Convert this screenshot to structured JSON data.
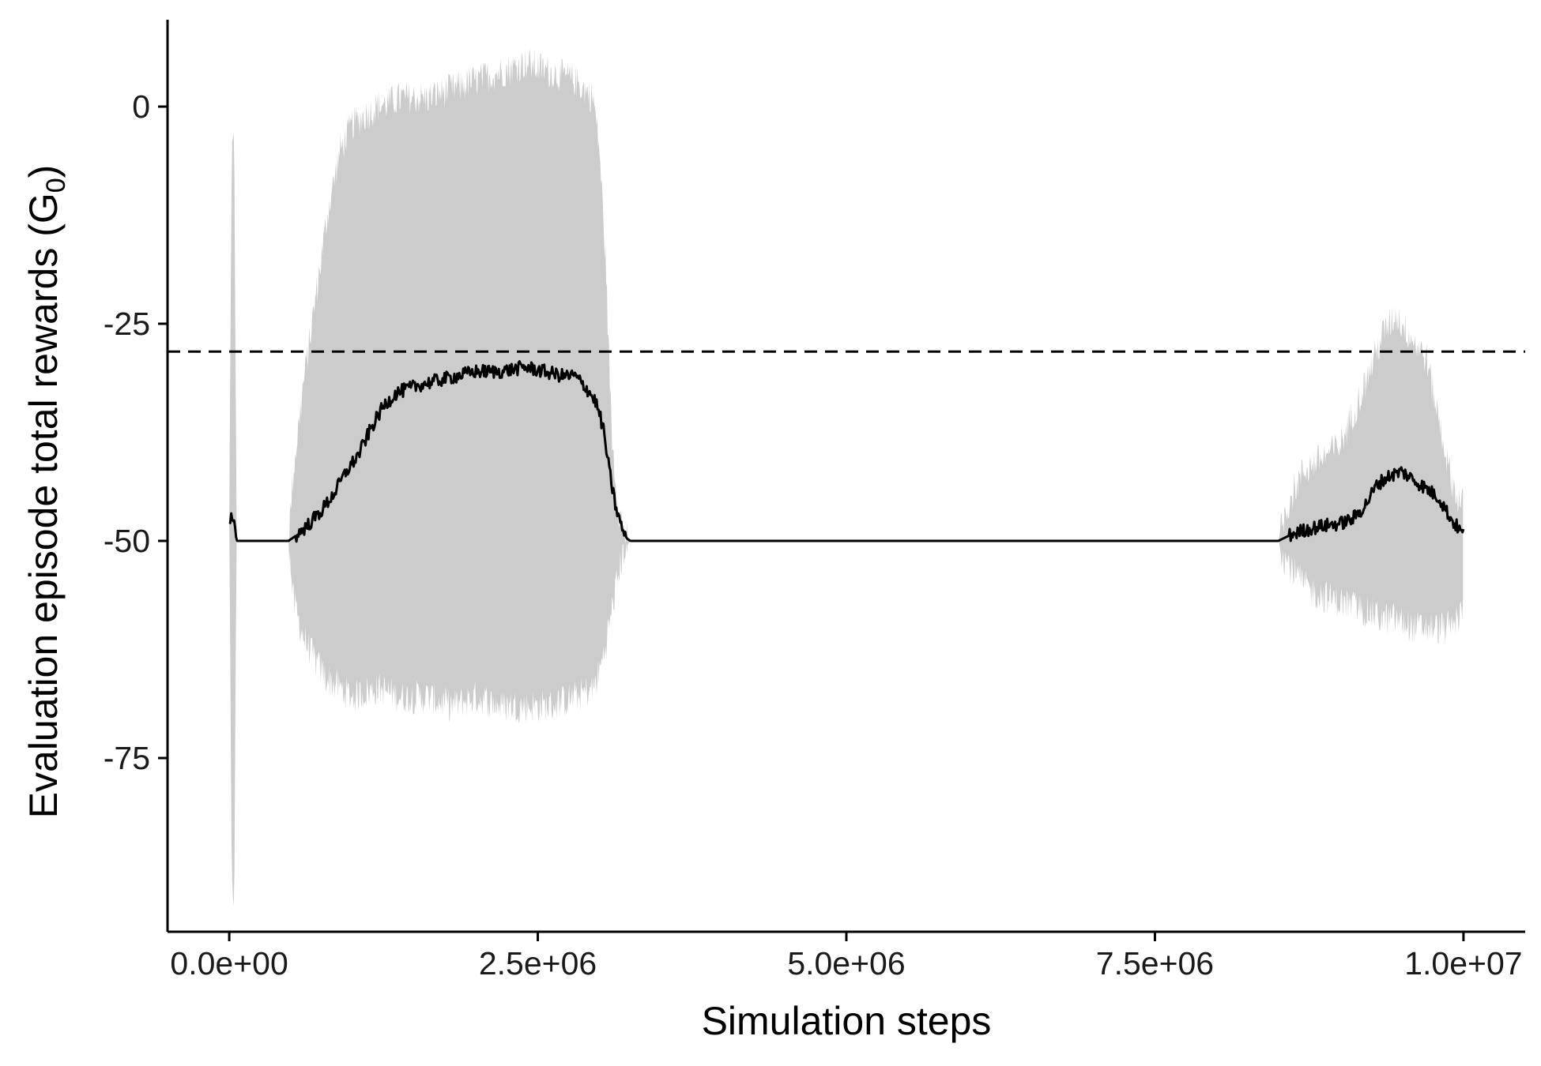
{
  "chart_data": {
    "type": "line",
    "xlabel": "Simulation steps",
    "ylabel": "Evaluation episode total rewards (G",
    "ylabel_subscript": "0",
    "ylabel_suffix": ")",
    "xlim": [
      -500000,
      10500000
    ],
    "ylim": [
      -95,
      10
    ],
    "x_ticks": [
      {
        "value": 0,
        "label": "0.0e+00"
      },
      {
        "value": 2500000,
        "label": "2.5e+06"
      },
      {
        "value": 5000000,
        "label": "5.0e+06"
      },
      {
        "value": 7500000,
        "label": "7.5e+06"
      },
      {
        "value": 10000000,
        "label": "1.0e+07"
      }
    ],
    "y_ticks": [
      {
        "value": 0,
        "label": "0"
      },
      {
        "value": -25,
        "label": "-25"
      },
      {
        "value": -50,
        "label": "-50"
      },
      {
        "value": -75,
        "label": "-75"
      }
    ],
    "reference_line": {
      "y": -28.2,
      "style": "dashed",
      "color": "#000000"
    },
    "band_color": "#cccccc",
    "line_color": "#000000",
    "band": [
      [
        0,
        -48,
        -48
      ],
      [
        20000,
        -90,
        -5
      ],
      [
        40000,
        -91,
        -4
      ],
      [
        60000,
        -50,
        -50
      ],
      [
        480000,
        -50,
        -50
      ],
      [
        520000,
        -57,
        -42
      ],
      [
        600000,
        -61,
        -32
      ],
      [
        700000,
        -64,
        -22
      ],
      [
        800000,
        -66,
        -12
      ],
      [
        900000,
        -67,
        -5
      ],
      [
        1000000,
        -68,
        -2
      ],
      [
        1200000,
        -67,
        0
      ],
      [
        1400000,
        -68,
        1
      ],
      [
        1600000,
        -68,
        1
      ],
      [
        1800000,
        -69,
        2
      ],
      [
        2000000,
        -68,
        3
      ],
      [
        2200000,
        -69,
        4
      ],
      [
        2400000,
        -69,
        5
      ],
      [
        2600000,
        -69,
        4
      ],
      [
        2800000,
        -68,
        3
      ],
      [
        2950000,
        -67,
        1
      ],
      [
        3000000,
        -65,
        -5
      ],
      [
        3050000,
        -62,
        -18
      ],
      [
        3100000,
        -58,
        -38
      ],
      [
        3150000,
        -54,
        -46
      ],
      [
        3200000,
        -51,
        -49
      ],
      [
        3250000,
        -50,
        -50
      ],
      [
        8500000,
        -50,
        -50
      ],
      [
        8550000,
        -52,
        -47
      ],
      [
        8600000,
        -53,
        -45
      ],
      [
        8700000,
        -55,
        -42
      ],
      [
        8800000,
        -56,
        -41
      ],
      [
        9000000,
        -57,
        -39
      ],
      [
        9200000,
        -58,
        -32
      ],
      [
        9350000,
        -59,
        -26
      ],
      [
        9450000,
        -59,
        -24
      ],
      [
        9600000,
        -60,
        -27
      ],
      [
        9700000,
        -60,
        -29
      ],
      [
        9800000,
        -60,
        -36
      ],
      [
        9900000,
        -60,
        -43
      ],
      [
        9950000,
        -59,
        -45
      ],
      [
        10000000,
        -58,
        -46
      ]
    ],
    "mean": [
      [
        0,
        -47.5
      ],
      [
        30000,
        -47
      ],
      [
        60000,
        -50
      ],
      [
        480000,
        -50
      ],
      [
        550000,
        -49.3
      ],
      [
        650000,
        -48
      ],
      [
        750000,
        -46.5
      ],
      [
        850000,
        -44.5
      ],
      [
        950000,
        -42
      ],
      [
        1050000,
        -40
      ],
      [
        1150000,
        -37
      ],
      [
        1250000,
        -34.5
      ],
      [
        1350000,
        -33
      ],
      [
        1450000,
        -32.5
      ],
      [
        1550000,
        -32
      ],
      [
        1700000,
        -31.5
      ],
      [
        1850000,
        -31
      ],
      [
        2000000,
        -30.5
      ],
      [
        2200000,
        -30.5
      ],
      [
        2400000,
        -30
      ],
      [
        2550000,
        -30.5
      ],
      [
        2700000,
        -31
      ],
      [
        2800000,
        -31
      ],
      [
        2900000,
        -32.5
      ],
      [
        2970000,
        -34
      ],
      [
        3030000,
        -37
      ],
      [
        3080000,
        -42
      ],
      [
        3130000,
        -46
      ],
      [
        3180000,
        -48.5
      ],
      [
        3220000,
        -49.7
      ],
      [
        3250000,
        -50
      ],
      [
        8500000,
        -50
      ],
      [
        8600000,
        -49.3
      ],
      [
        8700000,
        -48.8
      ],
      [
        8850000,
        -48.3
      ],
      [
        9000000,
        -48
      ],
      [
        9100000,
        -47.5
      ],
      [
        9200000,
        -46
      ],
      [
        9300000,
        -43.5
      ],
      [
        9400000,
        -42.5
      ],
      [
        9500000,
        -42
      ],
      [
        9600000,
        -43
      ],
      [
        9700000,
        -44
      ],
      [
        9800000,
        -45
      ],
      [
        9900000,
        -47.5
      ],
      [
        10000000,
        -49.3
      ]
    ]
  }
}
